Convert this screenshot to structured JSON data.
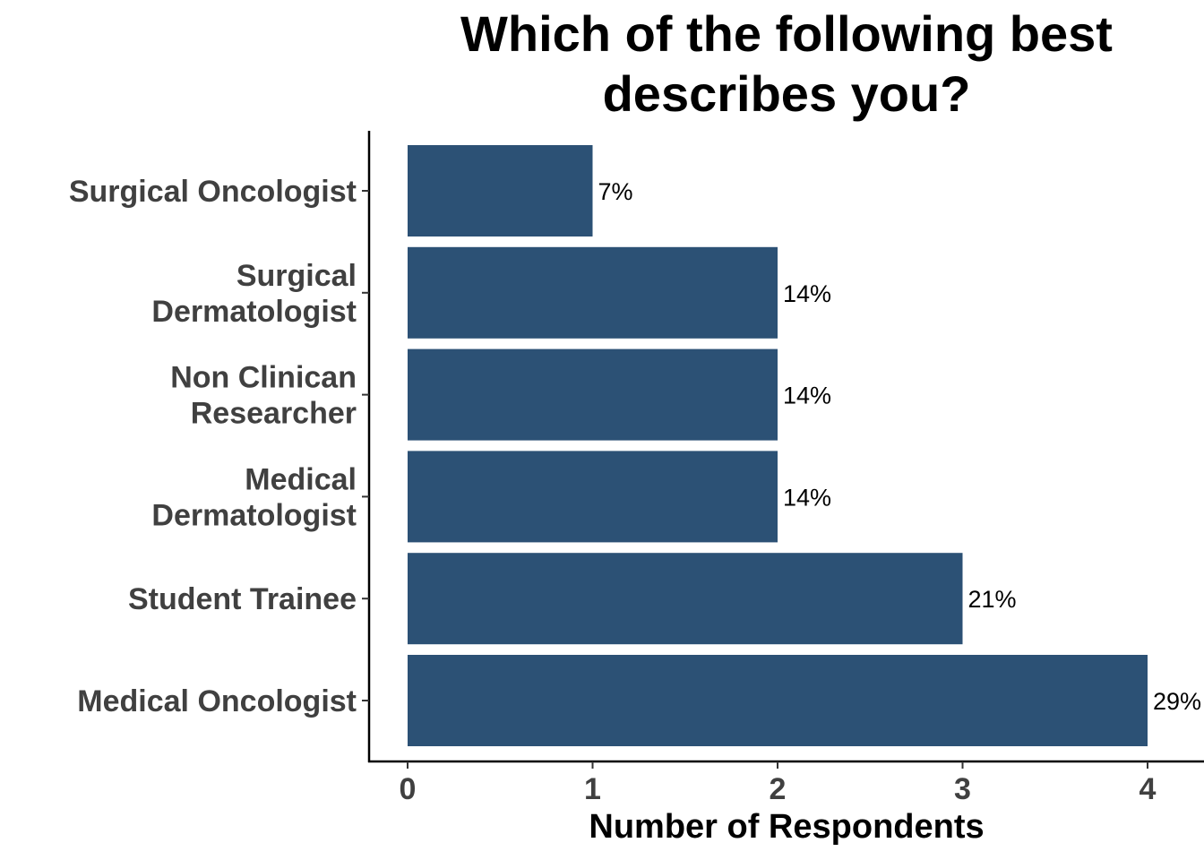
{
  "chart_data": {
    "type": "bar",
    "orientation": "horizontal",
    "title_lines": [
      "Which of the following best",
      "describes you?"
    ],
    "xlabel": "Number of Respondents",
    "ylabel": "",
    "xlim": [
      0,
      4
    ],
    "x_ticks": [
      "0",
      "1",
      "2",
      "3",
      "4"
    ],
    "categories": [
      "Surgical Oncologist",
      "Surgical Dermatologist",
      "Non Clinican Researcher",
      "Medical Dermatologist",
      "Student Trainee",
      "Medical Oncologist"
    ],
    "category_lines": [
      [
        "Surgical Oncologist"
      ],
      [
        "Surgical",
        "Dermatologist"
      ],
      [
        "Non Clinican",
        "Researcher"
      ],
      [
        "Medical",
        "Dermatologist"
      ],
      [
        "Student Trainee"
      ],
      [
        "Medical Oncologist"
      ]
    ],
    "values": [
      1,
      2,
      2,
      2,
      3,
      4
    ],
    "data_labels": [
      "7%",
      "14%",
      "14%",
      "14%",
      "21%",
      "29%"
    ],
    "bar_color": "#2C5175",
    "grid": false,
    "legend": "none"
  }
}
